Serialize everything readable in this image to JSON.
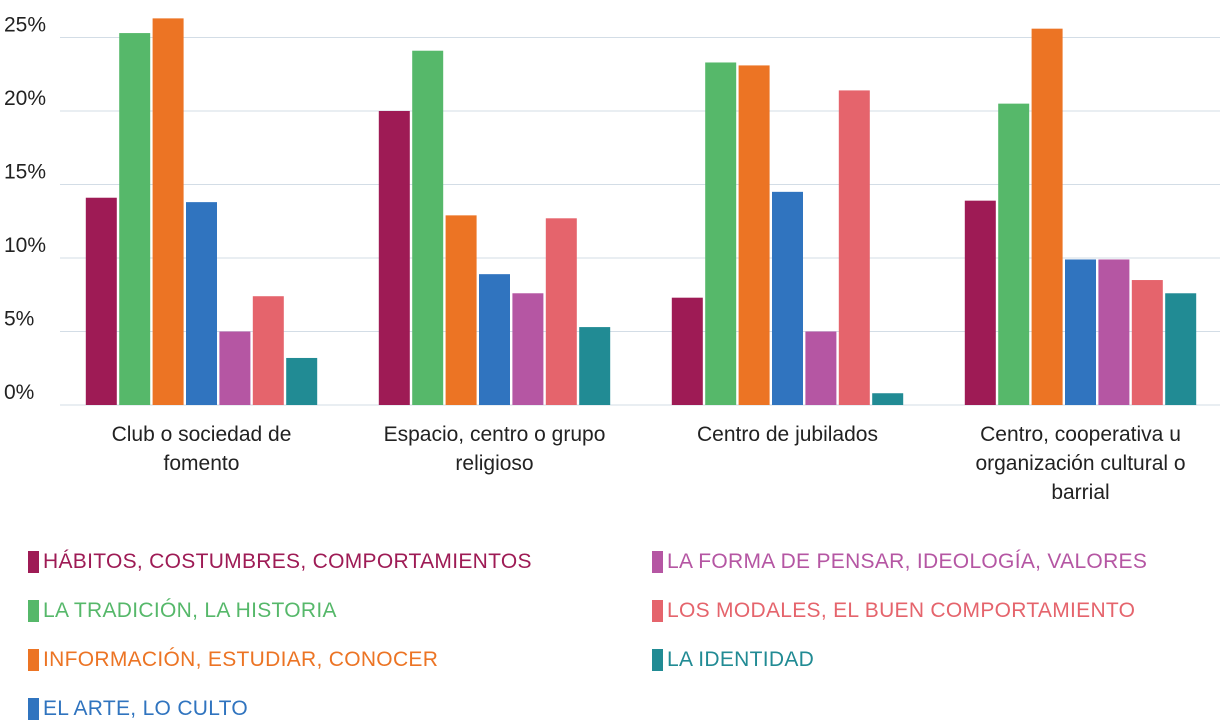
{
  "chart_data": {
    "type": "bar",
    "categories": [
      "Club o sociedad de fomento",
      "Espacio, centro o grupo religioso",
      "Centro de jubilados",
      "Centro, cooperativa u organización cultural o barrial"
    ],
    "series": [
      {
        "name": "HÁBITOS, COSTUMBRES, COMPORTAMIENTOS",
        "color": "#9e1b55",
        "values": [
          14.1,
          20.0,
          7.3,
          13.9
        ]
      },
      {
        "name": "LA TRADICIÓN, LA HISTORIA",
        "color": "#56b86a",
        "values": [
          25.3,
          24.1,
          23.3,
          20.5
        ]
      },
      {
        "name": "INFORMACIÓN, ESTUDIAR, CONOCER",
        "color": "#ec7424",
        "values": [
          26.3,
          12.9,
          23.1,
          25.6
        ]
      },
      {
        "name": "EL ARTE, LO CULTO",
        "color": "#3074bf",
        "values": [
          13.8,
          8.9,
          14.5,
          9.9
        ]
      },
      {
        "name": "LA FORMA DE PENSAR, IDEOLOGÍA, VALORES",
        "color": "#b556a3",
        "values": [
          5.0,
          7.6,
          5.0,
          9.9
        ]
      },
      {
        "name": "LOS MODALES, EL BUEN COMPORTAMIENTO",
        "color": "#e5646c",
        "values": [
          7.4,
          12.7,
          21.4,
          8.5
        ]
      },
      {
        "name": "LA IDENTIDAD",
        "color": "#218b94",
        "values": [
          3.2,
          5.3,
          0.8,
          7.6
        ]
      }
    ],
    "ylim": [
      0,
      27.55
    ],
    "yticks": [
      {
        "value": 0,
        "label": "0%"
      },
      {
        "value": 5,
        "label": "5%"
      },
      {
        "value": 10,
        "label": "10%"
      },
      {
        "value": 15,
        "label": "15%"
      },
      {
        "value": 20,
        "label": "20%"
      },
      {
        "value": 25,
        "label": "25%"
      }
    ],
    "grid": true,
    "legend": "bottom"
  }
}
